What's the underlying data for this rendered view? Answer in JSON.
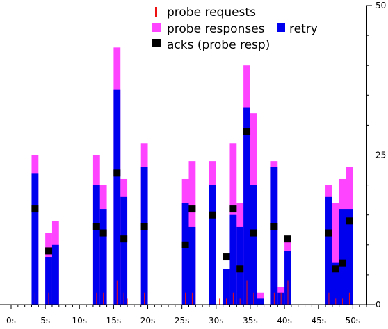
{
  "chart_data": {
    "type": "bar",
    "xlim": [
      0,
      52
    ],
    "ylim": [
      0,
      50
    ],
    "x_ticks": [
      0,
      5,
      10,
      15,
      20,
      25,
      30,
      35,
      40,
      45,
      50
    ],
    "x_tick_labels": [
      "0s",
      "5s",
      "10s",
      "15s",
      "20s",
      "25s",
      "30s",
      "35s",
      "40s",
      "45s",
      "50s"
    ],
    "y_ticks": [
      0,
      25,
      50
    ],
    "y_tick_labels": [
      "0",
      "25",
      "50"
    ],
    "bar_width_s": 1,
    "legend_position": "top-right",
    "series": [
      {
        "name": "probe responses",
        "color": "#ff44ff",
        "x": [
          3,
          5,
          6,
          12,
          13,
          15,
          16,
          19,
          25,
          26,
          29,
          31,
          32,
          33,
          34,
          35,
          36,
          38,
          39,
          40,
          46,
          47,
          48,
          49
        ],
        "values": [
          25,
          12,
          14,
          25,
          20,
          43,
          21,
          27,
          21,
          24,
          24,
          6,
          27,
          17,
          40,
          32,
          2,
          24,
          3,
          11,
          20,
          17,
          21,
          23
        ]
      },
      {
        "name": "retry",
        "color": "#0000ee",
        "x": [
          3,
          5,
          6,
          12,
          13,
          15,
          16,
          19,
          25,
          26,
          29,
          31,
          32,
          33,
          34,
          35,
          36,
          38,
          39,
          40,
          46,
          47,
          48,
          49
        ],
        "values": [
          22,
          8,
          10,
          20,
          16,
          36,
          18,
          23,
          17,
          13,
          20,
          6,
          15,
          13,
          33,
          20,
          1,
          23,
          2,
          9,
          18,
          7,
          16,
          16
        ]
      },
      {
        "name": "probe requests",
        "color": "#ee1111",
        "x": [
          3.5,
          5.5,
          12.5,
          13.5,
          15.5,
          16.5,
          17.0,
          19.5,
          25.5,
          26.5,
          30.5,
          31.5,
          32.5,
          33.5,
          34.5,
          35.5,
          38.5,
          39.5,
          40.5,
          46.5,
          47.5,
          48.5,
          49.5
        ],
        "values": [
          2,
          2,
          2,
          2,
          4,
          2,
          1,
          2,
          2,
          2,
          1,
          1,
          2,
          1,
          4,
          2,
          2,
          2,
          4,
          2,
          1,
          1,
          2
        ]
      },
      {
        "name": "acks (probe resp)",
        "color": "#000000",
        "x": [
          3.5,
          5.5,
          12.5,
          13.5,
          15.5,
          16.5,
          19.5,
          25.5,
          26.5,
          29.5,
          31.5,
          32.5,
          33.5,
          34.5,
          35.5,
          38.5,
          40.5,
          46.5,
          47.5,
          48.5,
          49.5
        ],
        "values": [
          16,
          9,
          13,
          12,
          22,
          11,
          13,
          10,
          16,
          15,
          8,
          16,
          6,
          29,
          12,
          13,
          11,
          12,
          6,
          7,
          14
        ]
      }
    ]
  }
}
